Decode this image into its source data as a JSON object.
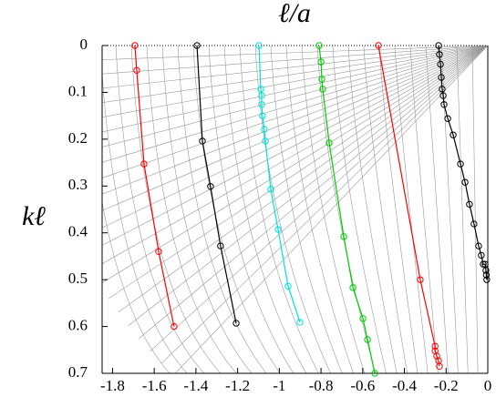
{
  "chart_data": {
    "type": "line",
    "xlabel": "ℓ/a",
    "ylabel": "kℓ",
    "xlim": [
      -1.85,
      0
    ],
    "ylim": [
      0,
      0.7
    ],
    "y_inverted": true,
    "marker": "circle",
    "xticks": [
      -1.8,
      -1.6,
      -1.4,
      -1.2,
      -1,
      -0.8,
      -0.6,
      -0.4,
      -0.2,
      0
    ],
    "yticks": [
      0,
      0.1,
      0.2,
      0.3,
      0.4,
      0.5,
      0.6,
      0.7
    ],
    "series": [
      {
        "color": "#ff0000",
        "x": [
          -1.693,
          -1.684,
          -1.649,
          -1.579,
          -1.505
        ],
        "y": [
          0,
          0.053,
          0.253,
          0.44,
          0.6
        ]
      },
      {
        "color": "#000000",
        "x": [
          -1.395,
          -1.369,
          -1.33,
          -1.282,
          -1.207
        ],
        "y": [
          0,
          0.204,
          0.301,
          0.428,
          0.593
        ]
      },
      {
        "color": "#00e0e0",
        "x": [
          -1.098,
          -1.089,
          -1.085,
          -1.085,
          -1.081,
          -1.072,
          -1.067,
          -1.041,
          -1.006,
          -0.958,
          -0.901
        ],
        "y": [
          0,
          0.093,
          0.107,
          0.126,
          0.15,
          0.179,
          0.204,
          0.307,
          0.393,
          0.514,
          0.591
        ]
      },
      {
        "color": "#00cc00",
        "x": [
          -0.809,
          -0.8,
          -0.796,
          -0.792,
          -0.761,
          -0.691,
          -0.647,
          -0.599,
          -0.577,
          -0.542
        ],
        "y": [
          0,
          0.035,
          0.072,
          0.093,
          0.208,
          0.408,
          0.517,
          0.583,
          0.628,
          0.7
        ]
      },
      {
        "color": "#ff0000",
        "x": [
          -0.525,
          -0.324,
          -0.253,
          -0.253,
          -0.245,
          -0.236,
          -0.232
        ],
        "y": [
          0,
          0.5,
          0.642,
          0.652,
          0.663,
          0.673,
          0.685
        ]
      },
      {
        "color": "#000000",
        "x": [
          -0.236,
          -0.232,
          -0.227,
          -0.223,
          -0.219,
          -0.214,
          -0.21,
          -0.192,
          -0.166,
          -0.131,
          -0.109,
          -0.088,
          -0.066,
          -0.044,
          -0.031,
          -0.022,
          -0.013,
          -0.009,
          -0.007,
          -0.005
        ],
        "y": [
          0,
          0.019,
          0.04,
          0.068,
          0.093,
          0.107,
          0.126,
          0.156,
          0.191,
          0.253,
          0.292,
          0.339,
          0.381,
          0.428,
          0.448,
          0.467,
          0.467,
          0.48,
          0.49,
          0.5
        ]
      }
    ]
  }
}
